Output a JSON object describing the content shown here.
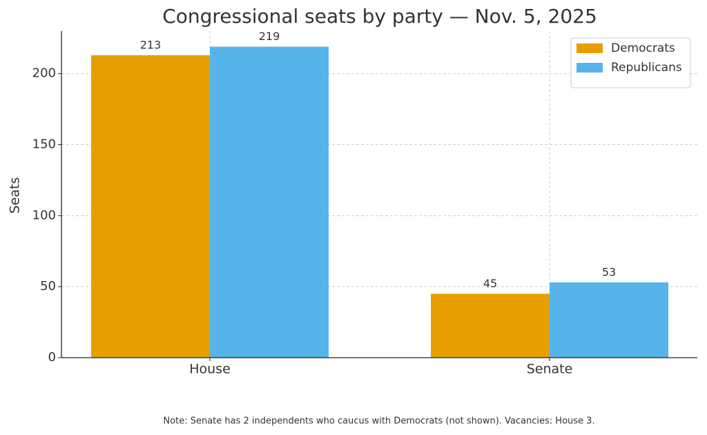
{
  "chart_data": {
    "type": "bar",
    "title": "Congressional seats by party — Nov. 5, 2025",
    "y_label": "Seats",
    "categories": [
      "House",
      "Senate"
    ],
    "series": [
      {
        "name": "Democrats",
        "color": "#E69F00",
        "values": [
          213,
          45
        ]
      },
      {
        "name": "Republicans",
        "color": "#56B4E9",
        "values": [
          219,
          53
        ]
      }
    ],
    "ylim": [
      0,
      230
    ],
    "yticks": [
      0,
      50,
      100,
      150,
      200
    ],
    "grid": true,
    "legend": "upper right",
    "note": "Note: Senate has 2 independents who caucus with Democrats (not shown). Vacancies: House 3."
  }
}
